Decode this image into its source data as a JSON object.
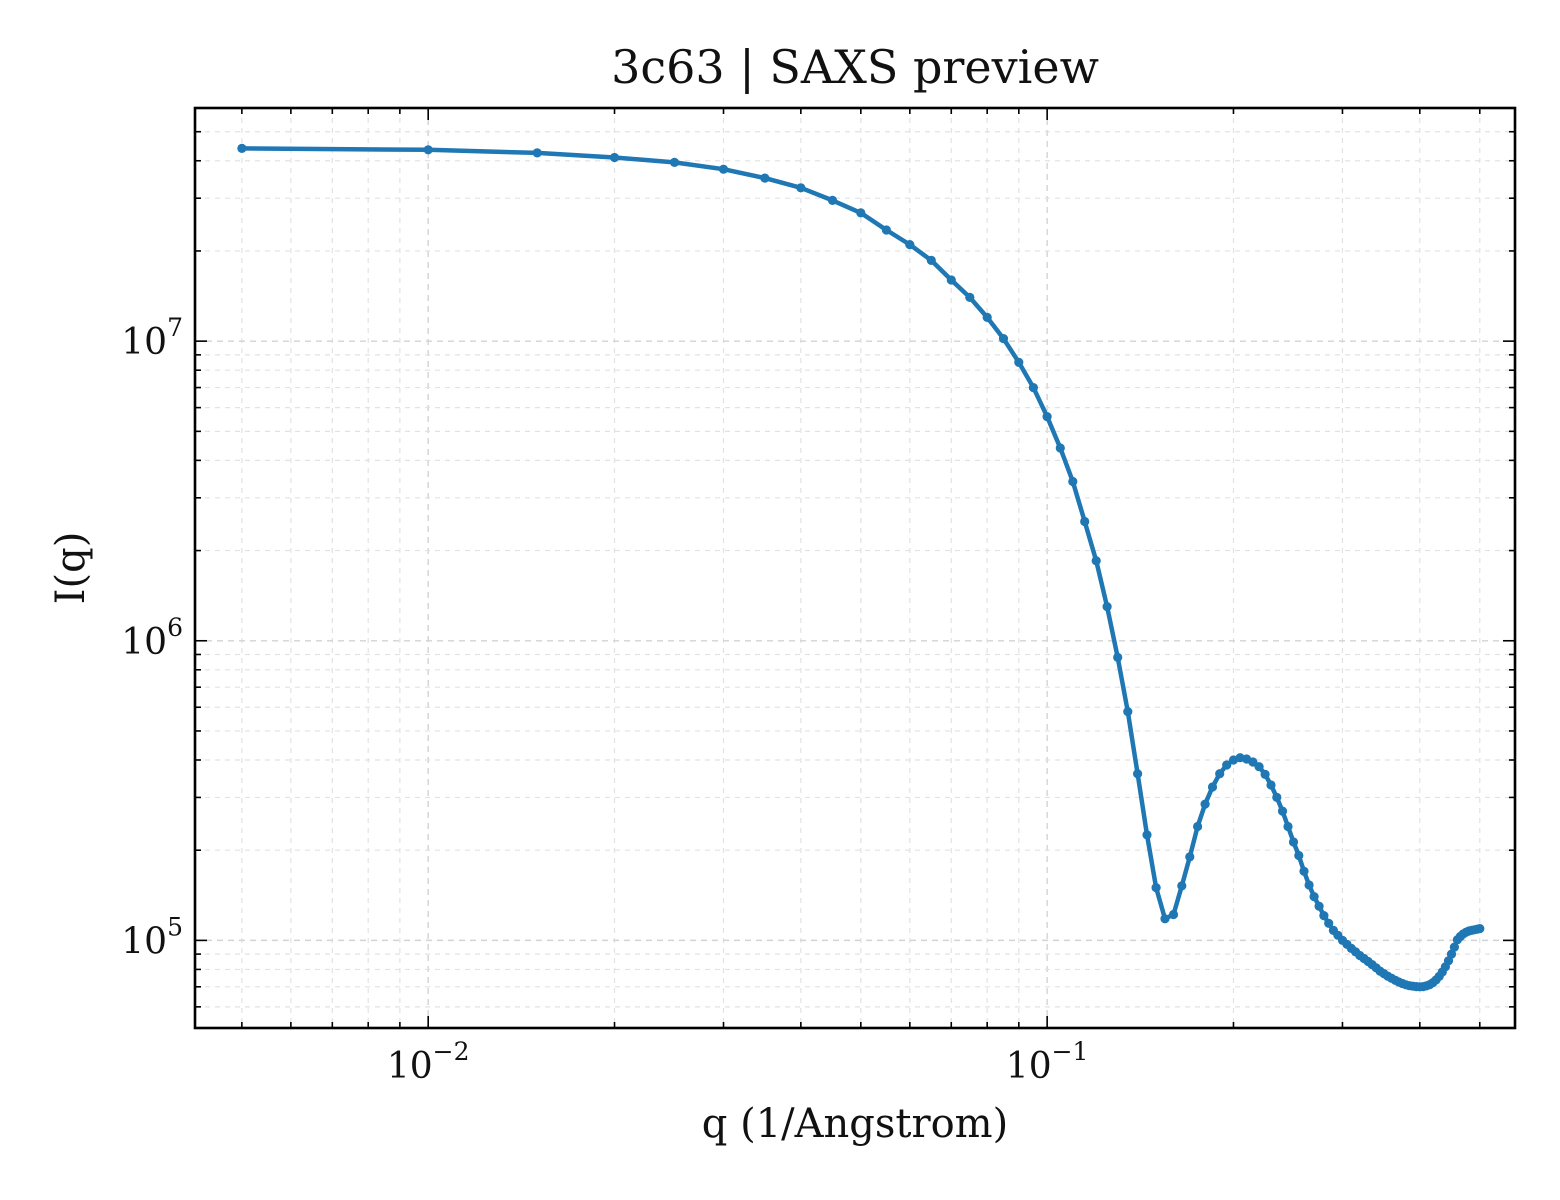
{
  "chart_data": {
    "type": "line",
    "title": "3c63 | SAXS preview",
    "xlabel": "q (1/Angstrom)",
    "ylabel": "I(q)",
    "xscale": "log",
    "yscale": "log",
    "xlim": [
      0.0042,
      0.57
    ],
    "ylim": [
      51000,
      60000000
    ],
    "xticks": [
      {
        "value": 0.01,
        "base": "10",
        "exp": "−2"
      },
      {
        "value": 0.1,
        "base": "10",
        "exp": "−1"
      }
    ],
    "yticks": [
      {
        "value": 100000,
        "base": "10",
        "exp": "5"
      },
      {
        "value": 1000000,
        "base": "10",
        "exp": "6"
      },
      {
        "value": 10000000,
        "base": "10",
        "exp": "7"
      }
    ],
    "grid": true,
    "line_color": "#1f77b4",
    "marker": "circle",
    "series": [
      {
        "x": [
          0.005,
          0.01,
          0.015,
          0.02,
          0.025,
          0.03,
          0.035,
          0.04,
          0.045,
          0.05,
          0.055,
          0.06,
          0.065,
          0.07,
          0.075,
          0.08,
          0.085,
          0.09,
          0.095,
          0.1,
          0.105,
          0.11,
          0.115,
          0.12,
          0.125,
          0.13,
          0.135,
          0.14,
          0.145,
          0.15,
          0.155,
          0.16,
          0.165,
          0.17,
          0.175,
          0.18,
          0.185,
          0.19,
          0.195,
          0.2,
          0.205,
          0.21,
          0.215,
          0.22,
          0.225,
          0.23,
          0.235,
          0.24,
          0.245,
          0.25,
          0.255,
          0.26,
          0.265,
          0.27,
          0.275,
          0.28,
          0.285,
          0.29,
          0.295,
          0.3,
          0.305,
          0.31,
          0.315,
          0.32,
          0.325,
          0.33,
          0.335,
          0.34,
          0.345,
          0.35,
          0.355,
          0.36,
          0.365,
          0.37,
          0.375,
          0.38,
          0.385,
          0.39,
          0.395,
          0.4,
          0.405,
          0.41,
          0.415,
          0.42,
          0.425,
          0.43,
          0.435,
          0.44,
          0.445,
          0.45,
          0.455,
          0.46,
          0.465,
          0.47,
          0.475,
          0.48,
          0.485,
          0.49,
          0.495,
          0.5
        ],
        "y": [
          44000000,
          43500000,
          42500000,
          41000000,
          39500000,
          37500000,
          35000000,
          32500000,
          29500000,
          26800000,
          23500000,
          21000000,
          18600000,
          16000000,
          14000000,
          12000000,
          10200000,
          8500000,
          7000000,
          5600000,
          4400000,
          3400000,
          2500000,
          1850000,
          1300000,
          880000,
          580000,
          360000,
          225000,
          150000,
          118000,
          122000,
          152000,
          190000,
          240000,
          285000,
          325000,
          360000,
          385000,
          400000,
          407000,
          403000,
          394000,
          380000,
          358000,
          330000,
          300000,
          270000,
          240000,
          213000,
          192000,
          170000,
          153000,
          140000,
          130000,
          121000,
          114000,
          108000,
          104000,
          100000,
          97000,
          94000,
          91500,
          89000,
          87000,
          85000,
          83000,
          81000,
          79000,
          77500,
          76000,
          74800,
          73600,
          72600,
          71800,
          71100,
          70600,
          70300,
          70100,
          70000,
          70100,
          70500,
          71200,
          72300,
          73800,
          75800,
          78400,
          81600,
          85500,
          90000,
          95000,
          100500,
          103000,
          105000,
          106500,
          107500,
          108000,
          108500,
          109000,
          109500
        ]
      }
    ]
  }
}
